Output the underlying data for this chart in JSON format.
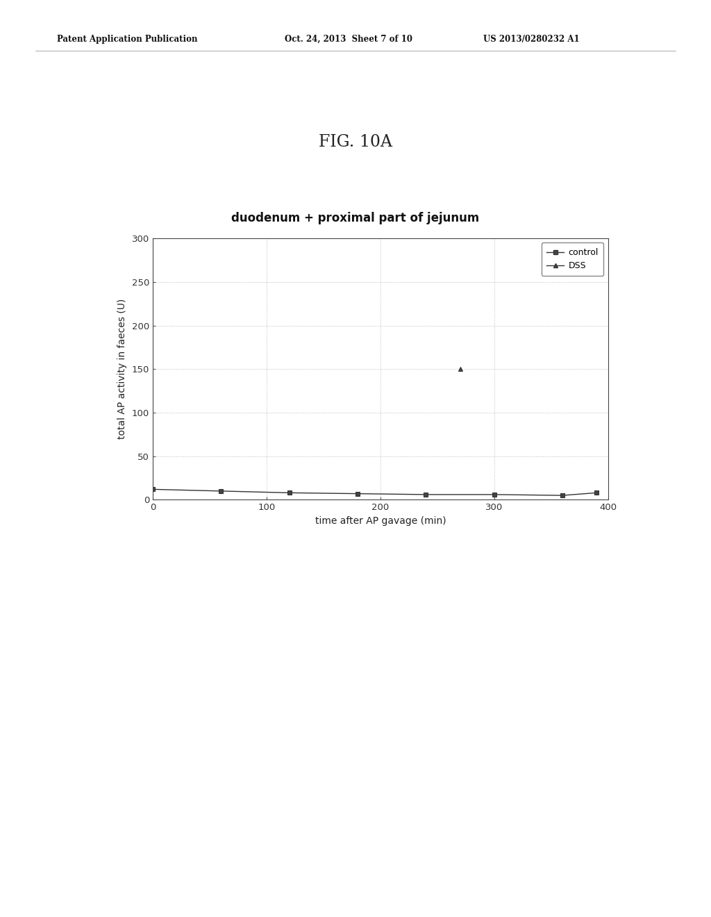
{
  "title": "FIG. 10A",
  "chart_title": "duodenum + proximal part of jejunum",
  "xlabel": "time after AP gavage (min)",
  "ylabel": "total AP activity in faeces (U)",
  "xlim": [
    0,
    400
  ],
  "ylim": [
    0,
    300
  ],
  "xticks": [
    0,
    100,
    200,
    300,
    400
  ],
  "yticks": [
    0,
    50,
    100,
    150,
    200,
    250,
    300
  ],
  "control_x": [
    0,
    60,
    120,
    180,
    240,
    300,
    360,
    390
  ],
  "control_y": [
    12,
    10,
    8,
    7,
    6,
    6,
    5,
    8
  ],
  "dss_x": [
    270
  ],
  "dss_y": [
    150
  ],
  "patent_header": "Patent Application Publication",
  "patent_date": "Oct. 24, 2013  Sheet 7 of 10",
  "patent_number": "US 2013/0280232 A1",
  "background_color": "#ffffff",
  "grid_color": "#aaaaaa",
  "legend_control_label": "control",
  "legend_dss_label": "DSS"
}
